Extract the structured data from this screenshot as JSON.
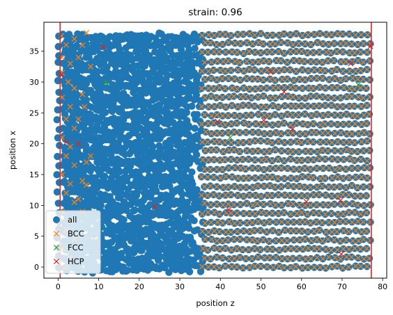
{
  "chart_data": {
    "type": "scatter",
    "title": "strain: 0.96",
    "xlabel": "position z",
    "ylabel": "position x",
    "xlim": [
      -3.5,
      81
    ],
    "ylim": [
      -1.8,
      39.7
    ],
    "xticks": [
      0,
      10,
      20,
      30,
      40,
      50,
      60,
      70,
      80
    ],
    "yticks": [
      0,
      5,
      10,
      15,
      20,
      25,
      30,
      35
    ],
    "vertical_lines": {
      "color": "#d62728",
      "x": [
        0.5,
        77.2
      ]
    },
    "legend": {
      "placement": "lower-left",
      "entries": [
        "all",
        "BCC",
        "FCC",
        "HCP"
      ]
    },
    "colors": {
      "all": "#1f77b4",
      "BCC": "#ff7f0e",
      "FCC": "#2ca02c",
      "HCP": "#d62728"
    },
    "series": [
      {
        "name": "all",
        "marker": "circle",
        "note_region": "dense amorphous band z 2-36, lattice z 36-77",
        "lattice": {
          "z_start": 35.5,
          "z_end": 77.5,
          "z_step": 1.45,
          "x_start": 0,
          "x_end": 38,
          "x_step": 1.45
        },
        "dense": {
          "z_start": 2,
          "z_end": 36,
          "x_start": -0.5,
          "x_end": 38
        },
        "left_column": {
          "z": [
            0,
            1.5,
            3,
            4.5
          ],
          "x_start": 0,
          "x_end": 38,
          "x_step": 1.5
        }
      },
      {
        "name": "BCC",
        "marker": "x",
        "lattice": {
          "z_start": 35.5,
          "z_end": 77.5,
          "z_step": 1.45,
          "x_start": 0,
          "x_end": 38,
          "x_step": 1.45
        },
        "left_points": [
          [
            0.8,
            37.5
          ],
          [
            2,
            36
          ],
          [
            1,
            34
          ],
          [
            3,
            33
          ],
          [
            1,
            31.5
          ],
          [
            2.5,
            30
          ],
          [
            4,
            29
          ],
          [
            1,
            27.5
          ],
          [
            3,
            26
          ],
          [
            2,
            24
          ],
          [
            4,
            22.5
          ],
          [
            1,
            21
          ],
          [
            3,
            19.5
          ],
          [
            2,
            18
          ],
          [
            4,
            16.5
          ],
          [
            1,
            15
          ],
          [
            3,
            13.5
          ],
          [
            2,
            12
          ],
          [
            4,
            10.5
          ],
          [
            1,
            9
          ],
          [
            3,
            7.5
          ],
          [
            2,
            6
          ],
          [
            4,
            4.5
          ],
          [
            1,
            3
          ],
          [
            3,
            1.5
          ],
          [
            2,
            0
          ],
          [
            6,
            36
          ],
          [
            8,
            32.5
          ],
          [
            6,
            28
          ],
          [
            5,
            24
          ],
          [
            7,
            17
          ],
          [
            8,
            18
          ],
          [
            6,
            14
          ],
          [
            7,
            13.3
          ],
          [
            5,
            11
          ],
          [
            6,
            9
          ],
          [
            7,
            38
          ],
          [
            4,
            37
          ],
          [
            5,
            34
          ],
          [
            6.5,
            26
          ]
        ]
      },
      {
        "name": "FCC",
        "marker": "x",
        "points": [
          [
            11.8,
            29.9
          ],
          [
            42.4,
            21.0
          ],
          [
            74.0,
            29.6
          ]
        ]
      },
      {
        "name": "HCP",
        "marker": "x",
        "points": [
          [
            0.7,
            31.2
          ],
          [
            11.2,
            35.7
          ],
          [
            2.1,
            20.3
          ],
          [
            5.0,
            20.0
          ],
          [
            23.9,
            9.8
          ],
          [
            39.3,
            23.6
          ],
          [
            42.1,
            9.3
          ],
          [
            50.7,
            23.8
          ],
          [
            52.4,
            31.6
          ],
          [
            55.7,
            28.4
          ],
          [
            57.8,
            22.4
          ],
          [
            61.2,
            10.6
          ],
          [
            69.6,
            10.8
          ],
          [
            69.8,
            2.1
          ],
          [
            72.1,
            33.0
          ],
          [
            77.0,
            35.8
          ]
        ]
      }
    ]
  }
}
